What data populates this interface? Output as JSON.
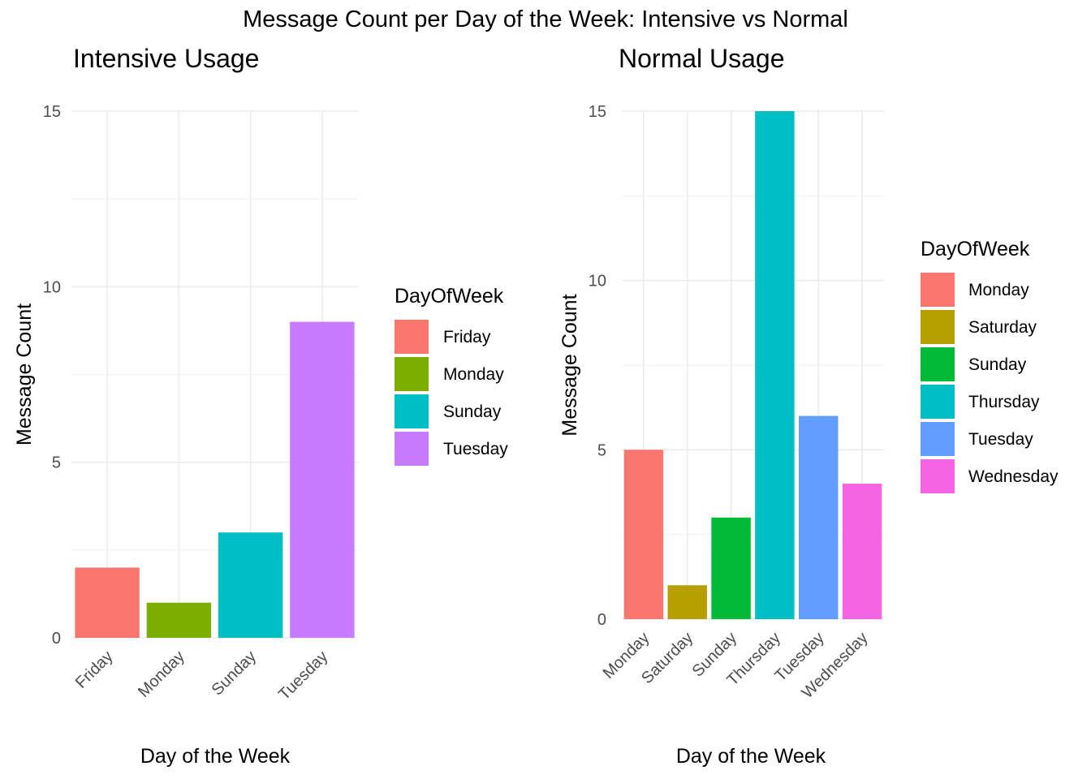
{
  "main_title": "Message Count per Day of the Week: Intensive vs Normal",
  "colors": {
    "Friday": "#F8766D",
    "Monday_intensive": "#7CAE00",
    "Sunday_intensive": "#00BFC4",
    "Tuesday_intensive": "#C77CFF",
    "Monday_normal": "#F8766D",
    "Saturday": "#B79F00",
    "Sunday_normal": "#00BA38",
    "Thursday": "#00BFC4",
    "Tuesday_normal": "#619CFF",
    "Wednesday": "#F564E3"
  },
  "chart_data": [
    {
      "type": "bar",
      "title": "Intensive Usage",
      "xlabel": "Day of the Week",
      "ylabel": "Message Count",
      "categories": [
        "Friday",
        "Monday",
        "Sunday",
        "Tuesday"
      ],
      "values": [
        2,
        1,
        3,
        9
      ],
      "bar_colors": [
        "#F8766D",
        "#7CAE00",
        "#00BFC4",
        "#C77CFF"
      ],
      "ylim": [
        0,
        15
      ],
      "yticks": [
        0,
        5,
        10,
        15
      ],
      "grid": true,
      "legend": {
        "title": "DayOfWeek",
        "position": "right",
        "entries": [
          "Friday",
          "Monday",
          "Sunday",
          "Tuesday"
        ]
      }
    },
    {
      "type": "bar",
      "title": "Normal Usage",
      "xlabel": "Day of the Week",
      "ylabel": "Message Count",
      "categories": [
        "Monday",
        "Saturday",
        "Sunday",
        "Thursday",
        "Tuesday",
        "Wednesday"
      ],
      "values": [
        5,
        1,
        3,
        15,
        6,
        4
      ],
      "bar_colors": [
        "#F8766D",
        "#B79F00",
        "#00BA38",
        "#00BFC4",
        "#619CFF",
        "#F564E3"
      ],
      "ylim": [
        0,
        15
      ],
      "yticks": [
        0,
        5,
        10,
        15
      ],
      "grid": true,
      "legend": {
        "title": "DayOfWeek",
        "position": "right",
        "entries": [
          "Monday",
          "Saturday",
          "Sunday",
          "Thursday",
          "Tuesday",
          "Wednesday"
        ]
      }
    }
  ]
}
